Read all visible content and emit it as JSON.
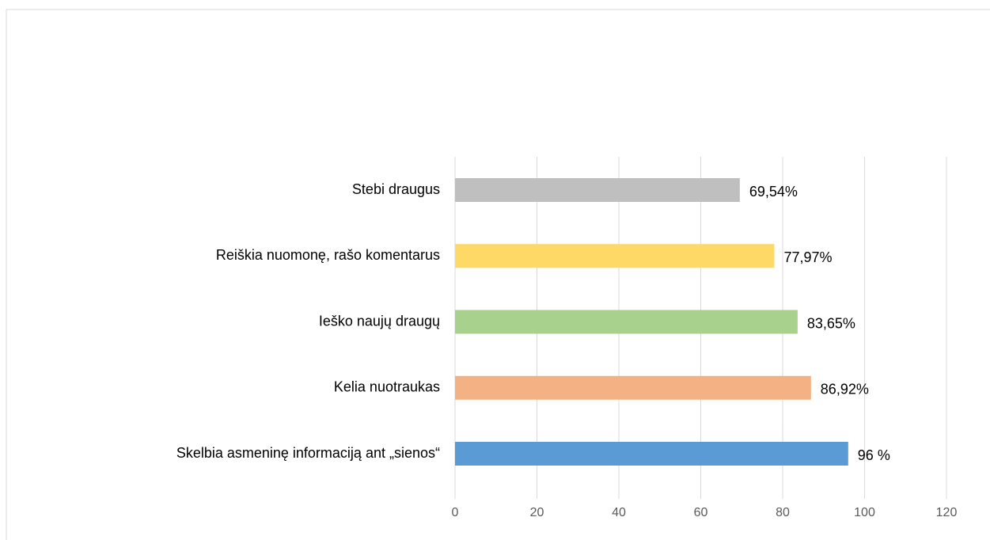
{
  "chart_data": {
    "type": "bar",
    "orientation": "horizontal",
    "categories": [
      "Stebi draugus",
      "Reiškia nuomonę, rašo komentarus",
      "Ieško naujų draugų",
      "Kelia nuotraukas",
      "Skelbia asmeninę informaciją ant „sienos“"
    ],
    "values": [
      69.54,
      77.97,
      83.65,
      86.92,
      96
    ],
    "value_labels": [
      "69,54%",
      "77,97%",
      "83,65%",
      "86,92%",
      "96 %"
    ],
    "colors": [
      "#bfbfbf",
      "#ffd966",
      "#a9d18e",
      "#f4b183",
      "#5b9bd5"
    ],
    "xlim": [
      0,
      120
    ],
    "xticks": [
      0,
      20,
      40,
      60,
      80,
      100,
      120
    ],
    "grid": true
  }
}
